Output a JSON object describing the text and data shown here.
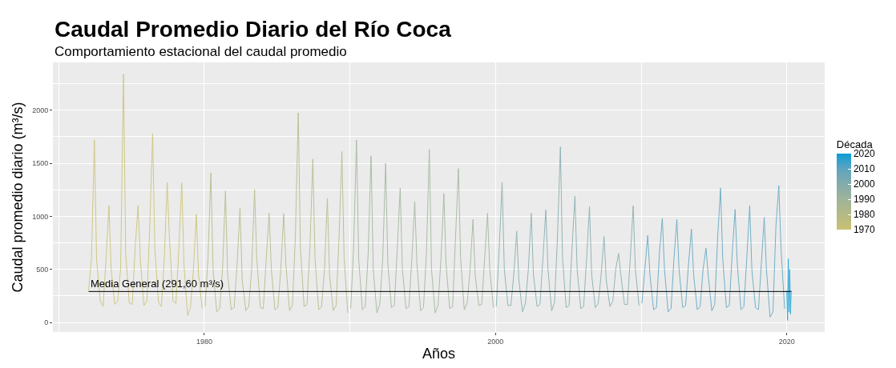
{
  "chart_data": {
    "type": "line",
    "title": "Caudal Promedio Diario del Río Coca",
    "subtitle": "Comportamiento estacional del caudal promedio",
    "xlabel": "Años",
    "ylabel": "Caudal promedio diario (m³/s)",
    "clabel": "Década",
    "series": [
      {
        "color": "#c9c173",
        "x": [
          1972.05,
          1972.25,
          1972.45,
          1972.6,
          1972.85,
          1973.05,
          1973.25,
          1973.45,
          1973.6,
          1973.85,
          1974.05,
          1974.25,
          1974.45,
          1974.6,
          1974.85,
          1975.05,
          1975.25,
          1975.45,
          1975.6,
          1975.85,
          1976.05,
          1976.25,
          1976.45,
          1976.6,
          1976.85,
          1977.05,
          1977.25,
          1977.45,
          1977.6,
          1977.85,
          1978.05,
          1978.25,
          1978.45,
          1978.6,
          1978.85,
          1979.05,
          1979.25,
          1979.45,
          1979.6,
          1979.85
        ],
        "values": [
          300,
          600,
          1720,
          600,
          200,
          150,
          600,
          1100,
          500,
          170,
          200,
          500,
          2340,
          650,
          180,
          170,
          700,
          1100,
          600,
          160,
          200,
          900,
          1780,
          700,
          190,
          150,
          600,
          1320,
          800,
          200,
          180,
          700,
          1315,
          550,
          65,
          140,
          500,
          1020,
          450,
          130
        ]
      },
      {
        "color": "#b4b986",
        "x": [
          1980.05,
          1980.25,
          1980.45,
          1980.6,
          1980.85,
          1981.05,
          1981.25,
          1981.45,
          1981.6,
          1981.85,
          1982.05,
          1982.25,
          1982.45,
          1982.6,
          1982.85,
          1983.05,
          1983.25,
          1983.45,
          1983.6,
          1983.85,
          1984.05,
          1984.25,
          1984.45,
          1984.6,
          1984.85,
          1985.05,
          1985.25,
          1985.45,
          1985.6,
          1985.85,
          1986.05,
          1986.25,
          1986.45,
          1986.6,
          1986.85,
          1987.05,
          1987.25,
          1987.45,
          1987.6,
          1987.85,
          1988.05,
          1988.25,
          1988.45,
          1988.6,
          1988.85,
          1989.05,
          1989.25,
          1989.45,
          1989.6,
          1989.85
        ],
        "values": [
          150,
          600,
          1410,
          500,
          100,
          130,
          500,
          1240,
          450,
          120,
          140,
          550,
          1080,
          400,
          110,
          150,
          500,
          1250,
          600,
          140,
          130,
          600,
          1030,
          500,
          120,
          140,
          500,
          1025,
          550,
          110,
          160,
          800,
          1975,
          700,
          150,
          170,
          700,
          1540,
          600,
          120,
          150,
          500,
          1170,
          450,
          110,
          160,
          800,
          1610,
          600,
          90
        ]
      },
      {
        "color": "#9fb49a",
        "x": [
          1990.05,
          1990.25,
          1990.45,
          1990.6,
          1990.85,
          1991.05,
          1991.25,
          1991.45,
          1991.6,
          1991.85,
          1992.05,
          1992.25,
          1992.45,
          1992.6,
          1992.85,
          1993.05,
          1993.25,
          1993.45,
          1993.6,
          1993.85,
          1994.05,
          1994.25,
          1994.45,
          1994.6,
          1994.85,
          1995.05,
          1995.25,
          1995.45,
          1995.6,
          1995.85,
          1996.05,
          1996.25,
          1996.45,
          1996.6,
          1996.85,
          1997.05,
          1997.25,
          1997.45,
          1997.6,
          1997.85,
          1998.05,
          1998.25,
          1998.45,
          1998.6,
          1998.85,
          1999.05,
          1999.25,
          1999.45,
          1999.6,
          1999.85
        ],
        "values": [
          130,
          700,
          1720,
          600,
          120,
          150,
          650,
          1570,
          500,
          90,
          170,
          600,
          1500,
          550,
          140,
          160,
          700,
          1265,
          500,
          130,
          150,
          600,
          1140,
          550,
          110,
          140,
          650,
          1630,
          500,
          90,
          160,
          600,
          1215,
          550,
          130,
          150,
          800,
          1450,
          600,
          120,
          180,
          500,
          970,
          450,
          160,
          170,
          600,
          1030,
          500,
          140
        ]
      },
      {
        "color": "#83abab",
        "x": [
          2000.05,
          2000.25,
          2000.45,
          2000.6,
          2000.85,
          2001.05,
          2001.25,
          2001.45,
          2001.6,
          2001.85,
          2002.05,
          2002.25,
          2002.45,
          2002.6,
          2002.85,
          2003.05,
          2003.25,
          2003.45,
          2003.6,
          2003.85,
          2004.05,
          2004.25,
          2004.45,
          2004.6,
          2004.85,
          2005.05,
          2005.25,
          2005.45,
          2005.6,
          2005.85,
          2006.05,
          2006.25,
          2006.45,
          2006.6,
          2006.85,
          2007.05,
          2007.25,
          2007.45,
          2007.6,
          2007.85,
          2008.05,
          2008.25,
          2008.45,
          2008.6,
          2008.85,
          2009.05,
          2009.25,
          2009.45,
          2009.6,
          2009.85
        ],
        "values": [
          150,
          700,
          1320,
          500,
          160,
          160,
          450,
          860,
          400,
          100,
          180,
          500,
          1030,
          450,
          150,
          170,
          600,
          1060,
          500,
          110,
          190,
          800,
          1655,
          600,
          140,
          160,
          700,
          1190,
          500,
          130,
          150,
          600,
          1090,
          450,
          140,
          180,
          450,
          810,
          400,
          150,
          200,
          500,
          650,
          450,
          170,
          170,
          600,
          1100,
          500,
          160
        ]
      },
      {
        "color": "#5ea4bf",
        "x": [
          2010.05,
          2010.25,
          2010.45,
          2010.6,
          2010.85,
          2011.05,
          2011.25,
          2011.45,
          2011.6,
          2011.85,
          2012.05,
          2012.25,
          2012.45,
          2012.6,
          2012.85,
          2013.05,
          2013.25,
          2013.45,
          2013.6,
          2013.85,
          2014.05,
          2014.25,
          2014.45,
          2014.6,
          2014.85,
          2015.05,
          2015.25,
          2015.45,
          2015.6,
          2015.85,
          2016.05,
          2016.25,
          2016.45,
          2016.6,
          2016.85,
          2017.05,
          2017.25,
          2017.45,
          2017.6,
          2017.85,
          2018.05,
          2018.25,
          2018.45,
          2018.6,
          2018.85,
          2019.05,
          2019.25,
          2019.45,
          2019.6,
          2019.85
        ],
        "values": [
          180,
          500,
          820,
          450,
          120,
          140,
          650,
          980,
          500,
          100,
          130,
          600,
          970,
          500,
          140,
          160,
          550,
          880,
          450,
          120,
          150,
          500,
          700,
          450,
          110,
          170,
          800,
          1265,
          600,
          140,
          160,
          650,
          1065,
          550,
          120,
          150,
          600,
          1100,
          500,
          140,
          120,
          550,
          990,
          500,
          50,
          100,
          900,
          1290,
          700,
          130
        ]
      },
      {
        "color": "#0b9dd6",
        "x": [
          2020.0,
          2020.05,
          2020.1,
          2020.15,
          2020.2,
          2020.25,
          2020.3
        ],
        "values": [
          300,
          20,
          600,
          100,
          500,
          80,
          300
        ]
      }
    ],
    "ref_lines": [
      {
        "axis": "y",
        "value": 291.6,
        "label": "Media General (291,60 m³/s)",
        "color": "#000000"
      }
    ],
    "xlim": [
      1969.6,
      2022.6
    ],
    "xticks": [
      1980,
      2000,
      2020
    ],
    "ylim": [
      -90,
      2450
    ],
    "yticks": [
      0,
      500,
      1000,
      1500,
      2000
    ],
    "clim": [
      1970,
      2020
    ],
    "cticks": [
      1970,
      1980,
      1990,
      2000,
      2010,
      2020
    ],
    "grid": true
  }
}
